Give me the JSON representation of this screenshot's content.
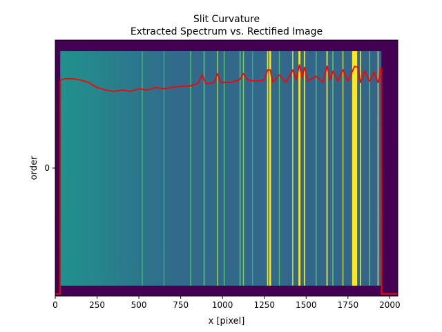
{
  "chart_data": {
    "type": "heatmap",
    "title": "Slit Curvature",
    "subtitle": "Extracted Spectrum vs. Rectified Image",
    "xlabel": "x [pixel]",
    "ylabel": "order",
    "xlim": [
      0,
      2048
    ],
    "x_ticks": [
      0,
      250,
      500,
      750,
      1000,
      1250,
      1500,
      1750,
      2000
    ],
    "x_tick_labels": [
      "0",
      "250",
      "500",
      "750",
      "1000",
      "1250",
      "1500",
      "1750",
      "2000"
    ],
    "y_ticks": [
      "0"
    ],
    "image": {
      "colormap": "viridis",
      "x_range": [
        30,
        1950
      ],
      "background_level": 0.35,
      "lines": [
        {
          "x": 520,
          "level": 0.65,
          "width": 4
        },
        {
          "x": 650,
          "level": 0.6,
          "width": 4
        },
        {
          "x": 810,
          "level": 0.7,
          "width": 4
        },
        {
          "x": 890,
          "level": 0.75,
          "width": 5
        },
        {
          "x": 970,
          "level": 0.85,
          "width": 6
        },
        {
          "x": 1010,
          "level": 0.7,
          "width": 4
        },
        {
          "x": 1105,
          "level": 0.75,
          "width": 5
        },
        {
          "x": 1125,
          "level": 0.8,
          "width": 4
        },
        {
          "x": 1180,
          "level": 0.6,
          "width": 4
        },
        {
          "x": 1270,
          "level": 0.95,
          "width": 8
        },
        {
          "x": 1285,
          "level": 1.0,
          "width": 10
        },
        {
          "x": 1340,
          "level": 0.7,
          "width": 5
        },
        {
          "x": 1420,
          "level": 0.9,
          "width": 7
        },
        {
          "x": 1460,
          "level": 1.0,
          "width": 12
        },
        {
          "x": 1490,
          "level": 0.95,
          "width": 8
        },
        {
          "x": 1560,
          "level": 0.7,
          "width": 5
        },
        {
          "x": 1625,
          "level": 0.95,
          "width": 8
        },
        {
          "x": 1660,
          "level": 0.75,
          "width": 5
        },
        {
          "x": 1720,
          "level": 0.9,
          "width": 6
        },
        {
          "x": 1790,
          "level": 1.0,
          "width": 30
        },
        {
          "x": 1825,
          "level": 0.9,
          "width": 8
        },
        {
          "x": 1880,
          "level": 0.75,
          "width": 5
        },
        {
          "x": 1930,
          "level": 0.95,
          "width": 6
        }
      ]
    },
    "series": [
      {
        "color": "#ff0000",
        "x": [
          0,
          29,
          30,
          35,
          60,
          100,
          150,
          200,
          250,
          300,
          350,
          400,
          450,
          500,
          550,
          600,
          650,
          700,
          750,
          800,
          850,
          880,
          900,
          950,
          970,
          990,
          1050,
          1100,
          1125,
          1150,
          1200,
          1250,
          1270,
          1285,
          1300,
          1340,
          1380,
          1420,
          1440,
          1460,
          1475,
          1490,
          1510,
          1560,
          1600,
          1625,
          1645,
          1660,
          1690,
          1720,
          1750,
          1790,
          1810,
          1825,
          1850,
          1880,
          1905,
          1930,
          1948,
          1950,
          1980,
          2048
        ],
        "y": [
          -1.0,
          -1.0,
          0.69,
          0.7,
          0.71,
          0.71,
          0.7,
          0.68,
          0.64,
          0.62,
          0.61,
          0.62,
          0.61,
          0.63,
          0.62,
          0.64,
          0.63,
          0.64,
          0.65,
          0.65,
          0.67,
          0.74,
          0.67,
          0.68,
          0.75,
          0.68,
          0.68,
          0.7,
          0.75,
          0.7,
          0.69,
          0.7,
          0.78,
          0.78,
          0.68,
          0.74,
          0.68,
          0.78,
          0.7,
          0.82,
          0.72,
          0.8,
          0.69,
          0.73,
          0.68,
          0.81,
          0.7,
          0.77,
          0.69,
          0.78,
          0.69,
          0.81,
          0.8,
          0.68,
          0.77,
          0.69,
          0.76,
          0.68,
          0.8,
          -1.0,
          -1.0,
          -1.0
        ]
      }
    ],
    "grid": false
  }
}
